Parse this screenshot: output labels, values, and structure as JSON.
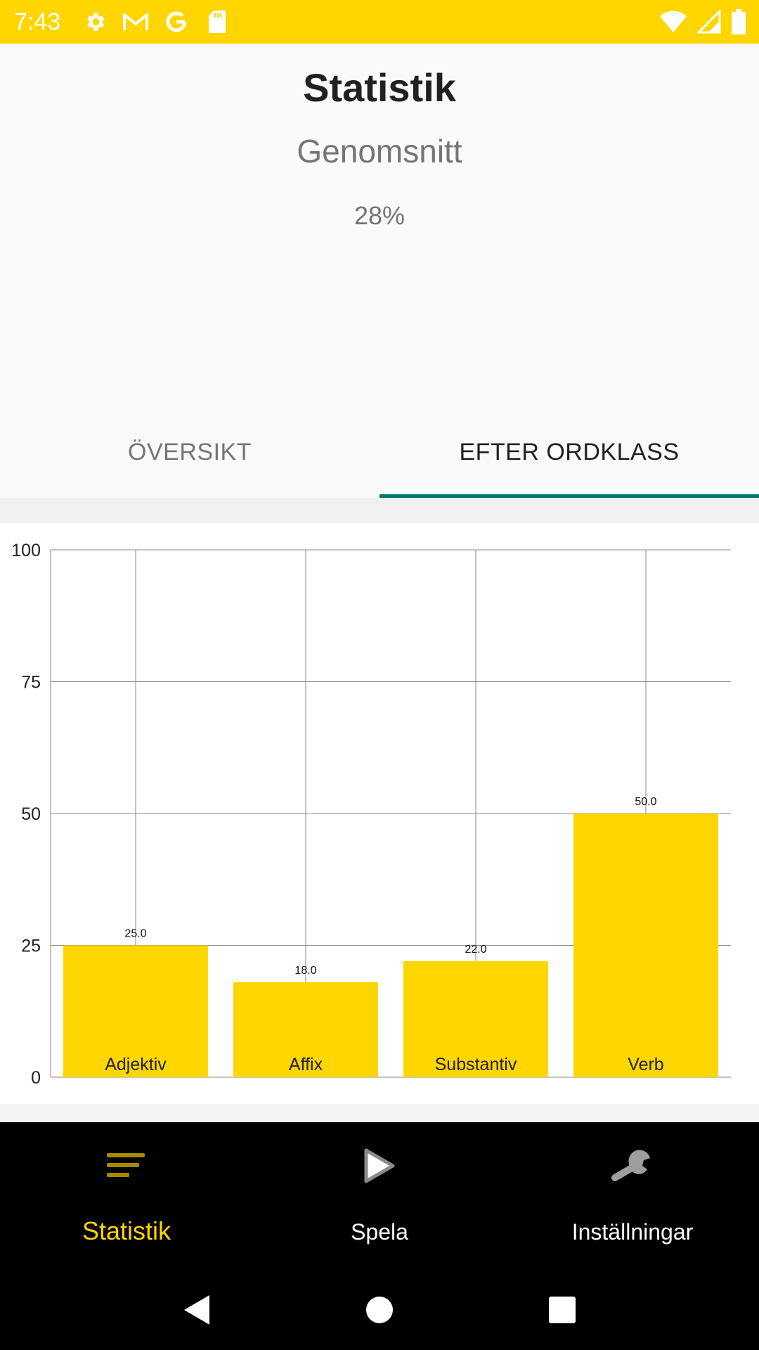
{
  "status_bar": {
    "time": "7:43",
    "left_icons": [
      "settings-icon",
      "gmail-icon",
      "google-icon",
      "sd-card-icon"
    ],
    "right_icons": [
      "wifi-icon",
      "signal-icon",
      "battery-icon"
    ]
  },
  "header": {
    "title": "Statistik",
    "subtitle": "Genomsnitt",
    "average": "28%"
  },
  "tabs": [
    {
      "label": "ÖVERSIKT",
      "active": false
    },
    {
      "label": "EFTER ORDKLASS",
      "active": true
    }
  ],
  "chart_data": {
    "type": "bar",
    "categories": [
      "Adjektiv",
      "Affix",
      "Substantiv",
      "Verb"
    ],
    "values": [
      25.0,
      18.0,
      22.0,
      50.0
    ],
    "value_labels": [
      "25.0",
      "18.0",
      "22.0",
      "50.0"
    ],
    "y_ticks": [
      "0",
      "25",
      "50",
      "75",
      "100"
    ],
    "ylim": [
      0,
      100
    ],
    "grid": true,
    "bar_color": "#ffd600"
  },
  "bottom_nav": [
    {
      "label": "Statistik",
      "icon": "stats-icon",
      "active": true
    },
    {
      "label": "Spela",
      "icon": "play-icon",
      "active": false
    },
    {
      "label": "Inställningar",
      "icon": "wrench-icon",
      "active": false
    }
  ],
  "system_nav": [
    "back-icon",
    "home-icon",
    "recents-icon"
  ],
  "colors": {
    "accent": "#ffd600",
    "tab_indicator": "#00796b"
  }
}
